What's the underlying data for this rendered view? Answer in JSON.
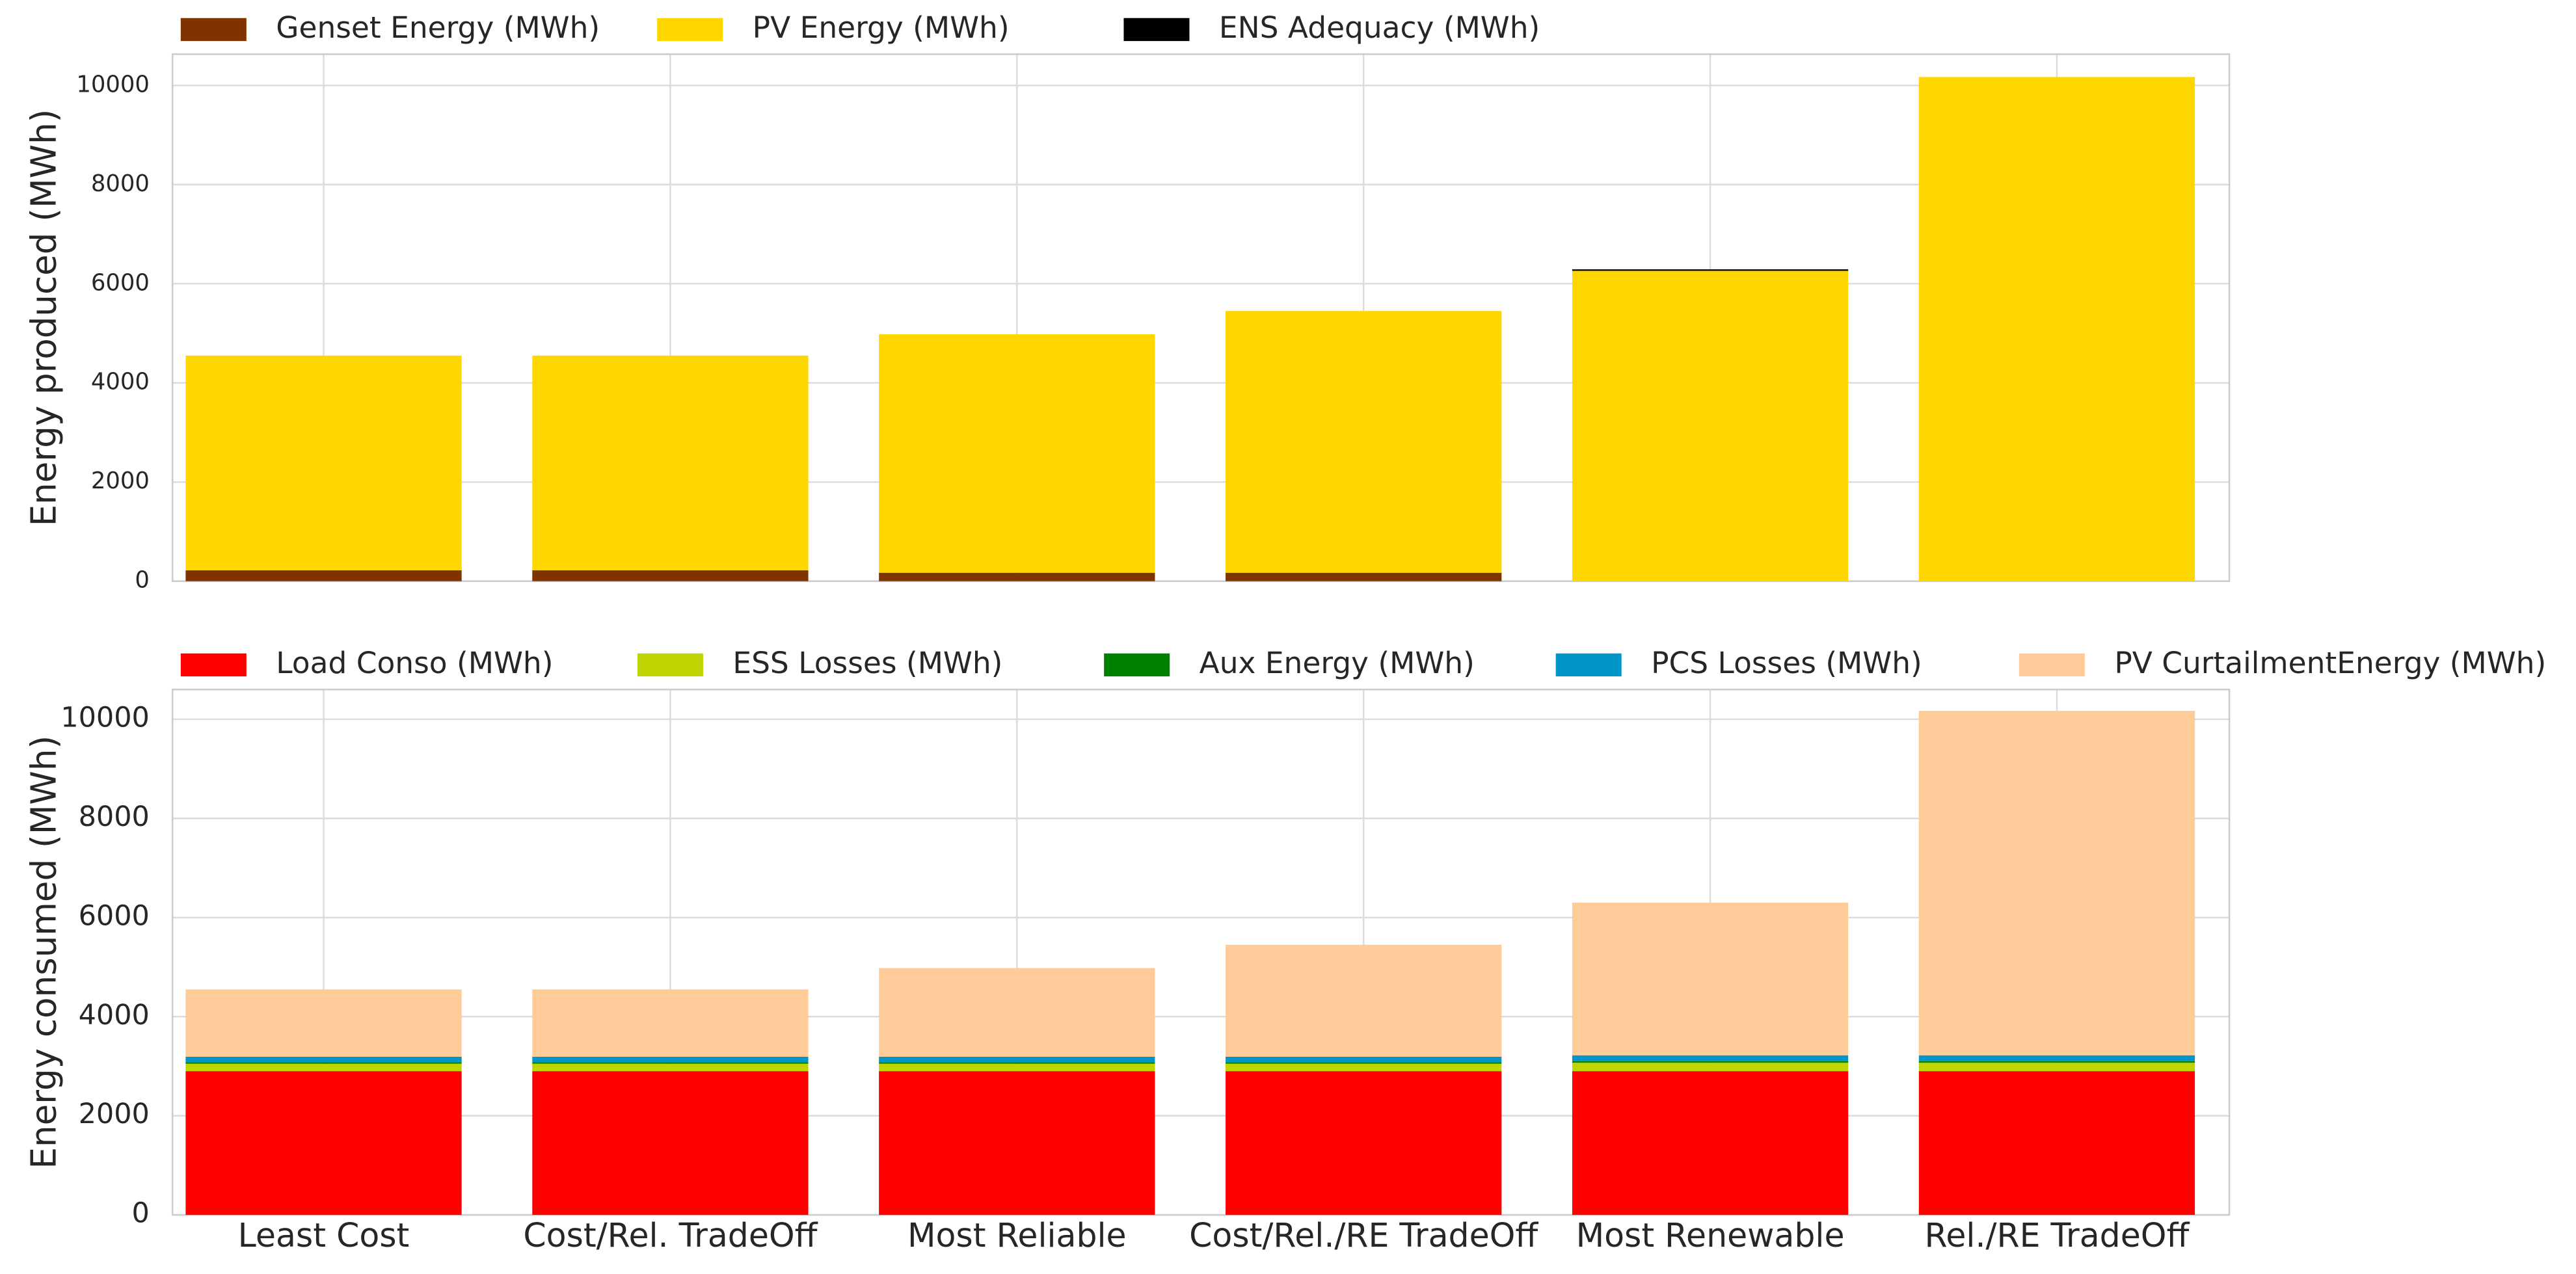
{
  "chart_data": [
    {
      "type": "bar",
      "stacked": true,
      "y_label": "Energy produced (MWh)",
      "ylim": [
        0,
        10630
      ],
      "yticks": [
        0,
        2000,
        4000,
        6000,
        8000,
        10000
      ],
      "grid": true,
      "legend": "top",
      "series": [
        {
          "name": "Genset Energy (MWh)",
          "color": "#7f3300",
          "values": [
            220,
            220,
            170,
            170,
            0,
            0
          ]
        },
        {
          "name": "PV Energy (MWh)",
          "color": "#ffd700",
          "values": [
            4330,
            4330,
            4810,
            5280,
            6260,
            10170
          ]
        },
        {
          "name": "ENS Adequacy (MWh)",
          "color": "#000000",
          "values": [
            0,
            0,
            0,
            0,
            30,
            0
          ]
        }
      ]
    },
    {
      "type": "bar",
      "stacked": true,
      "y_label": "Energy consumed (MWh)",
      "categories": [
        "Least Cost",
        "Cost/Rel. TradeOff",
        "Most Reliable",
        "Cost/Rel./RE TradeOff",
        "Most Renewable",
        "Rel./RE TradeOff"
      ],
      "ylim": [
        0,
        10600
      ],
      "yticks": [
        0,
        2000,
        4000,
        6000,
        8000,
        10000
      ],
      "grid": true,
      "legend": "top",
      "series": [
        {
          "name": "Load Conso (MWh)",
          "color": "#ff0000",
          "values": [
            2900,
            2900,
            2900,
            2900,
            2900,
            2900
          ]
        },
        {
          "name": "ESS Losses (MWh)",
          "color": "#bfd400",
          "values": [
            150,
            150,
            150,
            150,
            170,
            170
          ]
        },
        {
          "name": "Aux Energy (MWh)",
          "color": "#008000",
          "values": [
            30,
            30,
            30,
            30,
            30,
            30
          ]
        },
        {
          "name": "PCS Losses (MWh)",
          "color": "#0096c8",
          "values": [
            110,
            110,
            110,
            110,
            120,
            120
          ]
        },
        {
          "name": "PV CurtailmentEnergy (MWh)",
          "color": "#ffcc99",
          "values": [
            1360,
            1360,
            1790,
            2260,
            3080,
            6950
          ]
        }
      ]
    }
  ]
}
